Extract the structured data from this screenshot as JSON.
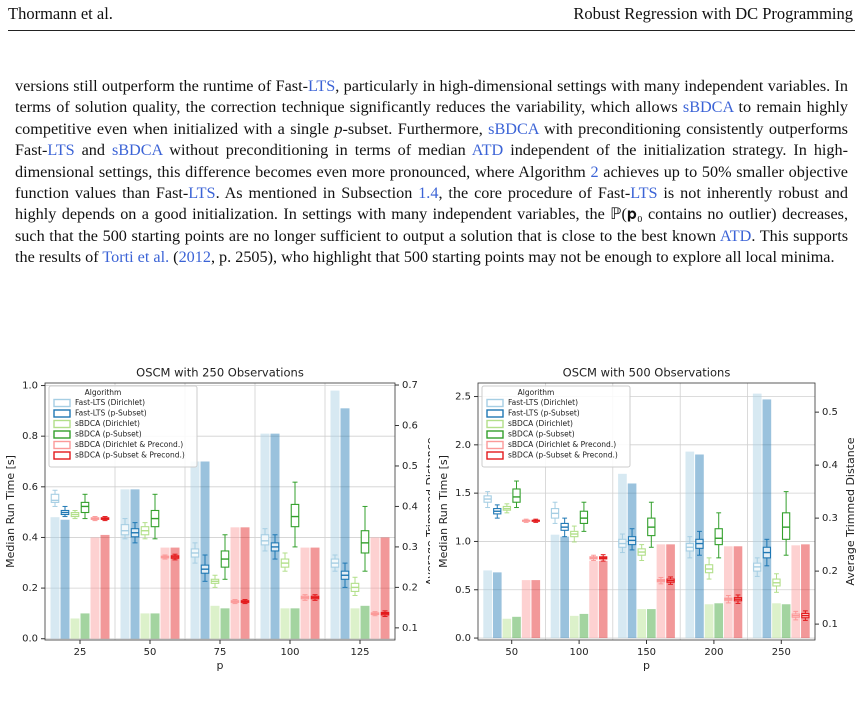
{
  "header": {
    "left": "Thormann et al.",
    "right": "Robust Regression with DC Programming"
  },
  "paragraph": [
    {
      "text": "versions still outperform the runtime of Fast-"
    },
    {
      "text": "LTS",
      "style": "link"
    },
    {
      "text": ", particularly in high-dimensional settings with many independent variables. In terms of solution quality, the correction technique significantly reduces the variability, which allows "
    },
    {
      "text": "sBDCA",
      "style": "link"
    },
    {
      "text": " to remain highly competitive even when initialized with a single "
    },
    {
      "text": "p",
      "style": "italic"
    },
    {
      "text": "-subset. Furthermore, "
    },
    {
      "text": "sBDCA",
      "style": "link"
    },
    {
      "text": " with preconditioning consistently outperforms Fast-"
    },
    {
      "text": "LTS",
      "style": "link"
    },
    {
      "text": " and "
    },
    {
      "text": "sBDCA",
      "style": "link"
    },
    {
      "text": " without preconditioning in terms of median "
    },
    {
      "text": "ATD",
      "style": "link"
    },
    {
      "text": " independent of the initialization strategy. In high-dimensional settings, this difference becomes even more pronounced, where Algorithm "
    },
    {
      "text": "2",
      "style": "link"
    },
    {
      "text": " achieves up to 50% smaller objective function values than Fast-"
    },
    {
      "text": "LTS",
      "style": "link"
    },
    {
      "text": ". As mentioned in Subsection "
    },
    {
      "text": "1.4",
      "style": "link"
    },
    {
      "text": ", the core procedure of Fast-"
    },
    {
      "text": "LTS",
      "style": "link"
    },
    {
      "text": " is not inherently robust and highly depends on a good initialization. In settings with many independent variables, the ℙ(𝐩₀ contains no outlier) decreases, such that the 500 starting points are no longer sufficient to output a solution that is close to the best known "
    },
    {
      "text": "ATD",
      "style": "link"
    },
    {
      "text": ". This supports the results of "
    },
    {
      "text": "Torti et al.",
      "style": "link"
    },
    {
      "text": " ("
    },
    {
      "text": "2012",
      "style": "link"
    },
    {
      "text": ", p. 2505), who highlight that 500 starting points may not be enough to explore all local minima."
    }
  ],
  "chart_data": [
    {
      "type": "bar-box",
      "title": "OSCM with 250 Observations",
      "xlabel": "p",
      "ylabel": "Median Run Time [s]",
      "y2label": "Average Trimmed Distance",
      "categories": [
        "25",
        "50",
        "75",
        "100",
        "125"
      ],
      "ylim": [
        -0.005,
        1.01
      ],
      "yticks": [
        {
          "value": 0,
          "label": "0.0"
        },
        0.2,
        0.4,
        0.6,
        0.8,
        {
          "value": 1,
          "label": "1.0"
        }
      ],
      "y2lim": [
        0.07,
        0.705
      ],
      "y2ticks": [
        0.1,
        0.2,
        0.3,
        0.4,
        0.5,
        0.6,
        0.7
      ],
      "grid": true,
      "legend": "upper left",
      "legend_title": "Algorithm",
      "series": [
        {
          "name": "Fast-LTS (Dirichlet)",
          "color": "#a6cee3",
          "values": [
            0.48,
            0.59,
            0.7,
            0.81,
            0.98
          ],
          "boxes": [
            [
              0.4,
              0.41,
              0.415,
              0.43,
              0.44
            ],
            [
              0.32,
              0.33,
              0.34,
              0.355,
              0.37
            ],
            [
              0.26,
              0.275,
              0.285,
              0.295,
              0.31
            ],
            [
              0.29,
              0.305,
              0.315,
              0.33,
              0.345
            ],
            [
              0.24,
              0.25,
              0.26,
              0.27,
              0.28
            ]
          ]
        },
        {
          "name": "Fast-LTS (p-Subset)",
          "color": "#1f78b4",
          "values": [
            0.47,
            0.59,
            0.7,
            0.81,
            0.91
          ],
          "boxes": [
            [
              0.375,
              0.38,
              0.385,
              0.39,
              0.4
            ],
            [
              0.31,
              0.325,
              0.335,
              0.345,
              0.36
            ],
            [
              0.215,
              0.235,
              0.245,
              0.255,
              0.28
            ],
            [
              0.27,
              0.29,
              0.3,
              0.31,
              0.33
            ],
            [
              0.2,
              0.22,
              0.23,
              0.24,
              0.26
            ]
          ]
        },
        {
          "name": "sBDCA (Dirichlet)",
          "color": "#b2df8a",
          "values": [
            0.08,
            0.1,
            0.13,
            0.12,
            0.12
          ],
          "boxes": [
            [
              0.37,
              0.375,
              0.38,
              0.385,
              0.39
            ],
            [
              0.32,
              0.33,
              0.34,
              0.35,
              0.36
            ],
            [
              0.2,
              0.21,
              0.215,
              0.22,
              0.23
            ],
            [
              0.24,
              0.25,
              0.26,
              0.27,
              0.285
            ],
            [
              0.18,
              0.19,
              0.2,
              0.21,
              0.225
            ]
          ]
        },
        {
          "name": "sBDCA (p-Subset)",
          "color": "#33a02c",
          "values": [
            0.1,
            0.1,
            0.12,
            0.12,
            0.13
          ],
          "boxes": [
            [
              0.37,
              0.385,
              0.4,
              0.41,
              0.43
            ],
            [
              0.32,
              0.35,
              0.37,
              0.39,
              0.43
            ],
            [
              0.22,
              0.25,
              0.27,
              0.29,
              0.33
            ],
            [
              0.3,
              0.35,
              0.375,
              0.405,
              0.46
            ],
            [
              0.24,
              0.285,
              0.31,
              0.34,
              0.4
            ]
          ]
        },
        {
          "name": "sBDCA (Dirichlet & Precond.)",
          "color": "#fb9a99",
          "values": [
            0.4,
            0.36,
            0.44,
            0.36,
            0.4
          ],
          "boxes": [
            [
              0.365,
              0.368,
              0.37,
              0.372,
              0.375
            ],
            [
              0.27,
              0.273,
              0.275,
              0.277,
              0.28
            ],
            [
              0.16,
              0.163,
              0.165,
              0.167,
              0.17
            ],
            [
              0.168,
              0.172,
              0.175,
              0.178,
              0.182
            ],
            [
              0.13,
              0.133,
              0.135,
              0.137,
              0.14
            ]
          ]
        },
        {
          "name": "sBDCA (p-Subset & Precond.)",
          "color": "#e31a1c",
          "values": [
            0.41,
            0.36,
            0.44,
            0.36,
            0.4
          ],
          "boxes": [
            [
              0.365,
              0.368,
              0.37,
              0.372,
              0.375
            ],
            [
              0.268,
              0.272,
              0.275,
              0.278,
              0.282
            ],
            [
              0.16,
              0.163,
              0.165,
              0.167,
              0.17
            ],
            [
              0.168,
              0.172,
              0.175,
              0.178,
              0.182
            ],
            [
              0.128,
              0.132,
              0.135,
              0.138,
              0.142
            ]
          ]
        }
      ]
    },
    {
      "type": "bar-box",
      "title": "OSCM with 500 Observations",
      "xlabel": "p",
      "ylabel": "Median Run Time [s]",
      "y2label": "Average Trimmed Distance",
      "categories": [
        "50",
        "100",
        "150",
        "200",
        "250"
      ],
      "ylim": [
        -0.02,
        2.64
      ],
      "yticks": [
        {
          "value": 0,
          "label": "0.0"
        },
        0.5,
        {
          "value": 1,
          "label": "1.0"
        },
        1.5,
        {
          "value": 2,
          "label": "2.0"
        },
        2.5
      ],
      "y2lim": [
        0.07,
        0.555
      ],
      "y2ticks": [
        0.1,
        0.2,
        0.3,
        0.4,
        0.5
      ],
      "grid": true,
      "legend": "upper left",
      "legend_title": "Algorithm",
      "series": [
        {
          "name": "Fast-LTS (Dirichlet)",
          "color": "#a6cee3",
          "values": [
            0.7,
            1.07,
            1.7,
            1.93,
            2.53
          ],
          "boxes": [
            [
              0.32,
              0.33,
              0.336,
              0.342,
              0.35
            ],
            [
              0.29,
              0.3,
              0.309,
              0.318,
              0.33
            ],
            [
              0.235,
              0.245,
              0.252,
              0.26,
              0.27
            ],
            [
              0.225,
              0.238,
              0.245,
              0.252,
              0.265
            ],
            [
              0.19,
              0.2,
              0.208,
              0.215,
              0.225
            ]
          ]
        },
        {
          "name": "Fast-LTS (p-Subset)",
          "color": "#1f78b4",
          "values": [
            0.68,
            1.05,
            1.6,
            1.9,
            2.47
          ],
          "boxes": [
            [
              0.3,
              0.308,
              0.313,
              0.318,
              0.325
            ],
            [
              0.265,
              0.277,
              0.283,
              0.29,
              0.3
            ],
            [
              0.24,
              0.25,
              0.258,
              0.265,
              0.28
            ],
            [
              0.23,
              0.243,
              0.252,
              0.26,
              0.275
            ],
            [
              0.21,
              0.225,
              0.235,
              0.245,
              0.26
            ]
          ]
        },
        {
          "name": "sBDCA (Dirichlet)",
          "color": "#b2df8a",
          "values": [
            0.2,
            0.23,
            0.3,
            0.35,
            0.36
          ],
          "boxes": [
            [
              0.31,
              0.315,
              0.318,
              0.322,
              0.327
            ],
            [
              0.255,
              0.265,
              0.27,
              0.275,
              0.285
            ],
            [
              0.22,
              0.23,
              0.236,
              0.242,
              0.25
            ],
            [
              0.185,
              0.197,
              0.204,
              0.212,
              0.225
            ],
            [
              0.16,
              0.172,
              0.178,
              0.185,
              0.195
            ]
          ]
        },
        {
          "name": "sBDCA (p-Subset)",
          "color": "#33a02c",
          "values": [
            0.22,
            0.25,
            0.3,
            0.36,
            0.35
          ],
          "boxes": [
            [
              0.32,
              0.33,
              0.34,
              0.355,
              0.37
            ],
            [
              0.275,
              0.29,
              0.3,
              0.313,
              0.33
            ],
            [
              0.245,
              0.267,
              0.283,
              0.3,
              0.33
            ],
            [
              0.225,
              0.25,
              0.262,
              0.28,
              0.31
            ],
            [
              0.23,
              0.26,
              0.283,
              0.31,
              0.35
            ]
          ]
        },
        {
          "name": "sBDCA (Dirichlet & Precond.)",
          "color": "#fb9a99",
          "values": [
            0.6,
            0.8,
            0.97,
            0.95,
            0.96
          ],
          "boxes": [
            [
              0.292,
              0.294,
              0.295,
              0.296,
              0.298
            ],
            [
              0.22,
              0.223,
              0.225,
              0.227,
              0.23
            ],
            [
              0.176,
              0.18,
              0.182,
              0.184,
              0.188
            ],
            [
              0.14,
              0.145,
              0.147,
              0.149,
              0.154
            ],
            [
              0.108,
              0.113,
              0.116,
              0.119,
              0.124
            ]
          ]
        },
        {
          "name": "sBDCA (p-Subset & Precond.)",
          "color": "#e31a1c",
          "values": [
            0.6,
            0.8,
            0.97,
            0.95,
            0.97
          ],
          "boxes": [
            [
              0.292,
              0.294,
              0.295,
              0.296,
              0.298
            ],
            [
              0.219,
              0.223,
              0.225,
              0.227,
              0.231
            ],
            [
              0.175,
              0.179,
              0.182,
              0.185,
              0.189
            ],
            [
              0.139,
              0.144,
              0.147,
              0.15,
              0.155
            ],
            [
              0.107,
              0.112,
              0.116,
              0.12,
              0.125
            ]
          ]
        }
      ]
    }
  ]
}
